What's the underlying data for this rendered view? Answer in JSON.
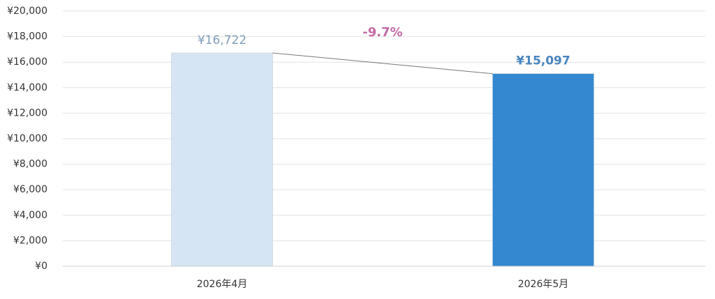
{
  "chart_data": {
    "type": "bar",
    "categories": [
      "2026年4月",
      "2026年5月"
    ],
    "values": [
      16722,
      15097
    ],
    "value_labels": [
      "¥16,722",
      "¥15,097"
    ],
    "colors": [
      "#d5e5f4",
      "#3388cf"
    ],
    "value_label_colors": [
      "#7f9dbd",
      "#4a86c0"
    ],
    "annotation": "-9.7%",
    "annotation_color": "#c46aa6",
    "ylim": [
      0,
      20000
    ],
    "yticks": [
      {
        "value": 0,
        "label": "¥0"
      },
      {
        "value": 2000,
        "label": "¥2,000"
      },
      {
        "value": 4000,
        "label": "¥4,000"
      },
      {
        "value": 6000,
        "label": "¥6,000"
      },
      {
        "value": 8000,
        "label": "¥8,000"
      },
      {
        "value": 10000,
        "label": "¥10,000"
      },
      {
        "value": 12000,
        "label": "¥12,000"
      },
      {
        "value": 14000,
        "label": "¥14,000"
      },
      {
        "value": 16000,
        "label": "¥16,000"
      },
      {
        "value": 18000,
        "label": "¥18,000"
      },
      {
        "value": 20000,
        "label": "¥20,000"
      }
    ],
    "grid": true
  }
}
